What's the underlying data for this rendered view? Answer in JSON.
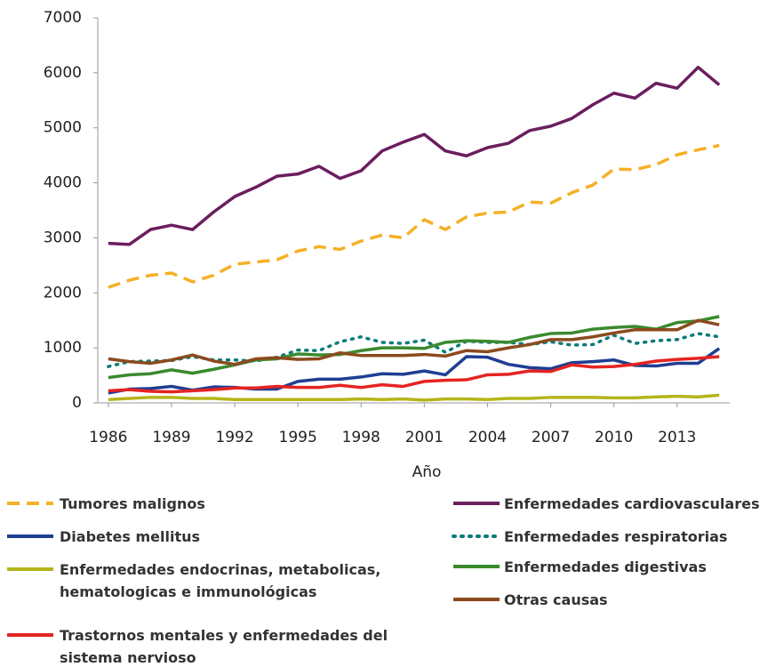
{
  "chart_data": {
    "type": "line",
    "x_label": "Año",
    "x": [
      1986,
      1987,
      1988,
      1989,
      1990,
      1991,
      1992,
      1993,
      1994,
      1995,
      1996,
      1997,
      1998,
      1999,
      2000,
      2001,
      2002,
      2003,
      2004,
      2005,
      2006,
      2007,
      2008,
      2009,
      2010,
      2011,
      2012,
      2013,
      2014,
      2015
    ],
    "xlim": [
      1985.5,
      2015.5
    ],
    "xticks": [
      1986,
      1989,
      1992,
      1995,
      1998,
      2001,
      2004,
      2007,
      2010,
      2013
    ],
    "ylim": [
      0,
      7000
    ],
    "yticks": [
      0,
      1000,
      2000,
      3000,
      4000,
      5000,
      6000,
      7000
    ],
    "series": [
      {
        "name": "Tumores malignos",
        "color": "#f5b026",
        "style": "dashed",
        "values": [
          2100,
          2230,
          2320,
          2360,
          2200,
          2320,
          2520,
          2560,
          2600,
          2760,
          2840,
          2790,
          2940,
          3050,
          3000,
          3330,
          3150,
          3380,
          3450,
          3470,
          3650,
          3630,
          3820,
          3960,
          4250,
          4240,
          4330,
          4510,
          4600,
          4680
        ]
      },
      {
        "name": "Diabetes mellitus",
        "color": "#1f3e92",
        "style": "solid",
        "values": [
          180,
          250,
          260,
          300,
          230,
          290,
          280,
          250,
          250,
          390,
          430,
          430,
          470,
          530,
          520,
          580,
          510,
          840,
          830,
          700,
          640,
          620,
          730,
          750,
          780,
          680,
          670,
          720,
          720,
          990
        ]
      },
      {
        "name": "Enfermedades endocrinas, metabolicas, hematologicas e immunológicas",
        "color": "#b5b51a",
        "style": "solid",
        "values": [
          60,
          80,
          100,
          100,
          80,
          80,
          60,
          60,
          60,
          60,
          60,
          60,
          70,
          60,
          70,
          50,
          70,
          70,
          60,
          80,
          80,
          100,
          100,
          100,
          90,
          90,
          110,
          120,
          110,
          140
        ]
      },
      {
        "name": "Trastornos mentales y enfermedades del sistema nervioso",
        "color": "#e52421",
        "style": "solid",
        "values": [
          220,
          240,
          210,
          200,
          220,
          240,
          270,
          270,
          300,
          280,
          280,
          320,
          280,
          330,
          300,
          390,
          410,
          420,
          510,
          520,
          580,
          570,
          690,
          650,
          660,
          700,
          760,
          790,
          810,
          840
        ]
      },
      {
        "name": "Enfermedades cardiovasculares",
        "color": "#6b1e5e",
        "style": "solid",
        "values": [
          2900,
          2880,
          3150,
          3230,
          3150,
          3470,
          3750,
          3920,
          4120,
          4160,
          4300,
          4080,
          4220,
          4580,
          4740,
          4880,
          4580,
          4490,
          4640,
          4720,
          4950,
          5030,
          5170,
          5420,
          5630,
          5540,
          5810,
          5720,
          6100,
          5780
        ]
      },
      {
        "name": "Enfermedades respiratorias",
        "color": "#0d7a7a",
        "style": "dotted",
        "values": [
          660,
          750,
          760,
          770,
          840,
          780,
          780,
          760,
          830,
          960,
          950,
          1110,
          1200,
          1100,
          1080,
          1140,
          920,
          1120,
          1100,
          1100,
          1060,
          1110,
          1050,
          1060,
          1230,
          1080,
          1130,
          1150,
          1260,
          1200
        ]
      },
      {
        "name": "Enfermedades digestivas",
        "color": "#3b8a2e",
        "style": "solid",
        "values": [
          460,
          510,
          530,
          600,
          540,
          610,
          690,
          780,
          800,
          890,
          870,
          880,
          950,
          1000,
          1000,
          990,
          1100,
          1130,
          1120,
          1100,
          1190,
          1260,
          1270,
          1340,
          1370,
          1390,
          1340,
          1460,
          1490,
          1570
        ]
      },
      {
        "name": "Otras causas",
        "color": "#8b4a1e",
        "style": "solid",
        "values": [
          800,
          750,
          720,
          780,
          870,
          760,
          700,
          800,
          820,
          790,
          800,
          910,
          860,
          860,
          860,
          880,
          850,
          950,
          930,
          1000,
          1060,
          1150,
          1150,
          1200,
          1270,
          1330,
          1330,
          1330,
          1500,
          1420
        ]
      }
    ]
  }
}
